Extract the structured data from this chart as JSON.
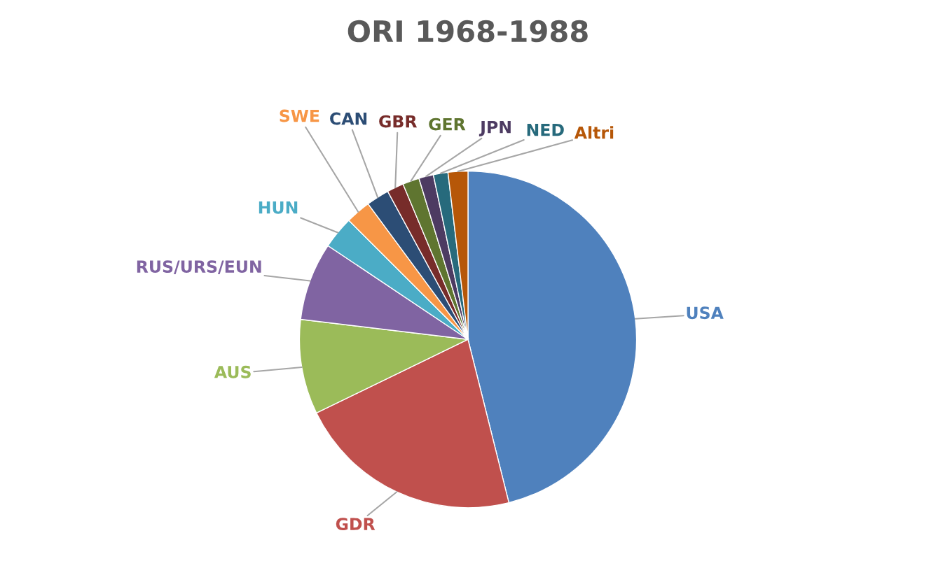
{
  "chart_data": {
    "type": "pie",
    "title": "ORI 1968-1988",
    "categories": [
      "USA",
      "GDR",
      "AUS",
      "RUS/URS/EUN",
      "HUN",
      "SWE",
      "CAN",
      "GBR",
      "GER",
      "JPN",
      "NED",
      "Altri"
    ],
    "values": [
      46.1,
      21.7,
      9.1,
      7.5,
      3.1,
      2.4,
      2.2,
      1.6,
      1.6,
      1.4,
      1.4,
      1.9
    ],
    "colors": [
      "#4f81bd",
      "#c0504d",
      "#9bbb59",
      "#8064a2",
      "#4bacc6",
      "#f79646",
      "#2c4d75",
      "#772c2a",
      "#5f7530",
      "#4d3b62",
      "#276a7c",
      "#b65708"
    ],
    "legend": false
  }
}
